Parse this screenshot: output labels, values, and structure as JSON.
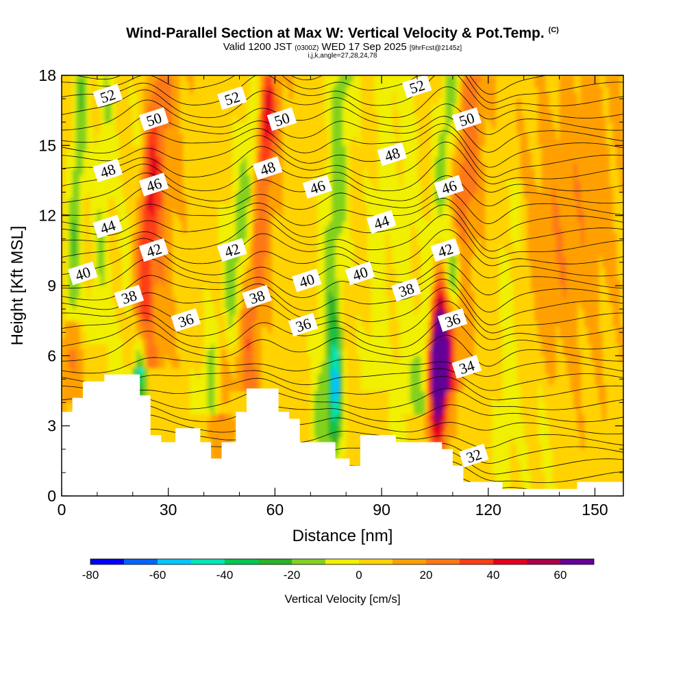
{
  "header": {
    "title": "Wind-Parallel Section at Max W: Vertical Velocity & Pot.Temp.",
    "copyright": "(C)",
    "subtitle_a": "Valid 1200 JST",
    "subtitle_b": "(0300Z)",
    "subtitle_c": "WED 17 Sep 2025",
    "subtitle_d": "[9hrFcst@2145z]",
    "indices": "i,j,k,angle=27,28,24,78"
  },
  "chart_data": {
    "type": "heatmap",
    "title": "Wind-Parallel Section at Max W: Vertical Velocity & Pot.Temp.",
    "xlabel": "Distance [nm]",
    "ylabel": "Height [Kft MSL]",
    "xlim": [
      0,
      158
    ],
    "ylim": [
      0,
      18
    ],
    "x_ticks": [
      "0",
      "30",
      "60",
      "90",
      "120",
      "150"
    ],
    "y_ticks": [
      "0",
      "3",
      "6",
      "9",
      "12",
      "15",
      "18"
    ],
    "colorbar": {
      "label": "Vertical Velocity [cm/s]",
      "ticks": [
        "-80",
        "-60",
        "-40",
        "-20",
        "0",
        "20",
        "40",
        "60"
      ],
      "levels": [
        -80,
        -70,
        -60,
        -50,
        -40,
        -30,
        -20,
        -10,
        0,
        10,
        20,
        30,
        40,
        50,
        60,
        70
      ],
      "colors": [
        "#0000ff",
        "#0064ff",
        "#00c8ff",
        "#00e6b4",
        "#00c850",
        "#28b428",
        "#82d21e",
        "#f0f000",
        "#ffd200",
        "#ffa000",
        "#ff7814",
        "#ff3c14",
        "#e6001e",
        "#aa0046",
        "#640096"
      ]
    },
    "updraft_cores": [
      {
        "x": 25,
        "y": 13.0,
        "value": 40
      },
      {
        "x": 57,
        "y": 16.5,
        "value": 40
      },
      {
        "x": 106,
        "y": 5.5,
        "value": 65
      },
      {
        "x": 114,
        "y": 14.0,
        "value": 25
      },
      {
        "x": 45,
        "y": 5.0,
        "value": 25
      }
    ],
    "downdraft_cores": [
      {
        "x": 22,
        "y": 5.5,
        "value": -40
      },
      {
        "x": 77,
        "y": 4.5,
        "value": -50
      },
      {
        "x": 110,
        "y": 9.5,
        "value": -45
      },
      {
        "x": 5,
        "y": 12.0,
        "value": -20
      }
    ],
    "terrain_top_kft": [
      [
        0,
        3.6
      ],
      [
        3,
        4.2
      ],
      [
        6,
        4.9
      ],
      [
        12,
        5.2
      ],
      [
        22,
        4.3
      ],
      [
        25,
        2.6
      ],
      [
        28,
        2.3
      ],
      [
        32,
        2.9
      ],
      [
        39,
        2.3
      ],
      [
        42,
        1.6
      ],
      [
        45,
        2.3
      ],
      [
        49,
        3.6
      ],
      [
        52,
        4.6
      ],
      [
        61,
        3.6
      ],
      [
        64,
        3.3
      ],
      [
        67,
        2.3
      ],
      [
        77,
        1.6
      ],
      [
        81,
        1.3
      ],
      [
        84,
        2.6
      ],
      [
        90,
        2.6
      ],
      [
        94,
        2.3
      ],
      [
        107,
        2.0
      ],
      [
        110,
        1.3
      ],
      [
        113,
        0.6
      ],
      [
        124,
        0.3
      ],
      [
        145,
        0.6
      ],
      [
        158,
        0.6
      ]
    ],
    "isentropes": [
      {
        "value": "32",
        "label_x": 116,
        "label_y": 1.7
      },
      {
        "value": "34",
        "label_x": 114,
        "label_y": 5.5
      },
      {
        "value": "36",
        "label_x": 35,
        "label_y": 7.5
      },
      {
        "value": "36",
        "label_x": 68,
        "label_y": 7.3
      },
      {
        "value": "36",
        "label_x": 110,
        "label_y": 7.5
      },
      {
        "value": "38",
        "label_x": 19,
        "label_y": 8.5
      },
      {
        "value": "38",
        "label_x": 55,
        "label_y": 8.5
      },
      {
        "value": "38",
        "label_x": 97,
        "label_y": 8.8
      },
      {
        "value": "40",
        "label_x": 6,
        "label_y": 9.5
      },
      {
        "value": "40",
        "label_x": 69,
        "label_y": 9.2
      },
      {
        "value": "40",
        "label_x": 84,
        "label_y": 9.5
      },
      {
        "value": "42",
        "label_x": 26,
        "label_y": 10.5
      },
      {
        "value": "42",
        "label_x": 48,
        "label_y": 10.5
      },
      {
        "value": "42",
        "label_x": 108,
        "label_y": 10.5
      },
      {
        "value": "44",
        "label_x": 13,
        "label_y": 11.5
      },
      {
        "value": "44",
        "label_x": 90,
        "label_y": 11.7
      },
      {
        "value": "46",
        "label_x": 26,
        "label_y": 13.3
      },
      {
        "value": "46",
        "label_x": 72,
        "label_y": 13.2
      },
      {
        "value": "46",
        "label_x": 109,
        "label_y": 13.2
      },
      {
        "value": "48",
        "label_x": 13,
        "label_y": 13.9
      },
      {
        "value": "48",
        "label_x": 58,
        "label_y": 14.0
      },
      {
        "value": "48",
        "label_x": 93,
        "label_y": 14.6
      },
      {
        "value": "50",
        "label_x": 26,
        "label_y": 16.1
      },
      {
        "value": "50",
        "label_x": 62,
        "label_y": 16.1
      },
      {
        "value": "50",
        "label_x": 114,
        "label_y": 16.1
      },
      {
        "value": "52",
        "label_x": 13,
        "label_y": 17.1
      },
      {
        "value": "52",
        "label_x": 48,
        "label_y": 17.0
      },
      {
        "value": "52",
        "label_x": 100,
        "label_y": 17.5
      }
    ]
  }
}
